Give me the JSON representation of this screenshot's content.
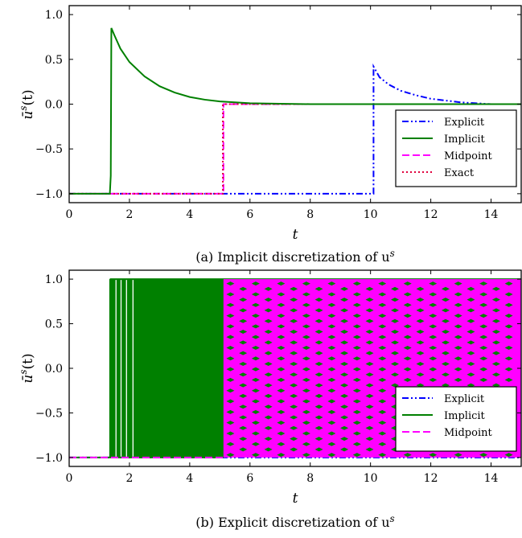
{
  "chart_data": [
    {
      "type": "line",
      "caption": "(a) Implicit discretization of u",
      "caption_sup": "s",
      "xlabel": "t",
      "ylabel": "ū",
      "ylabel_sup": "s",
      "ylabel_arg": "(t)",
      "xlim": [
        0,
        15
      ],
      "ylim": [
        -1.1,
        1.1
      ],
      "xticks": [
        "0",
        "2",
        "4",
        "6",
        "8",
        "10",
        "12",
        "14"
      ],
      "yticks": [
        "−1.0",
        "−0.5",
        "0.0",
        "0.5",
        "1.0"
      ],
      "grid": false,
      "legend_position": "lower-right",
      "series": [
        {
          "name": "Explicit",
          "color": "#0000ff",
          "style": "dashdotdot",
          "x": [
            0,
            10.1,
            10.1,
            10.1,
            10.3,
            10.6,
            11.0,
            11.5,
            12.0,
            12.5,
            13.0,
            13.5,
            14.0,
            15.0
          ],
          "y": [
            -1.0,
            -1.0,
            0.42,
            0.42,
            0.3,
            0.22,
            0.15,
            0.1,
            0.06,
            0.04,
            0.02,
            0.01,
            0.0,
            0.0
          ]
        },
        {
          "name": "Implicit",
          "color": "#008000",
          "style": "solid",
          "x": [
            0,
            1.35,
            1.38,
            1.4,
            1.5,
            1.7,
            2.0,
            2.5,
            3.0,
            3.5,
            4.0,
            4.5,
            5.0,
            5.5,
            6.0,
            7.0,
            8.0,
            10.0,
            15.0
          ],
          "y": [
            -1.0,
            -1.0,
            -0.8,
            0.85,
            0.77,
            0.62,
            0.47,
            0.31,
            0.2,
            0.13,
            0.08,
            0.05,
            0.03,
            0.02,
            0.01,
            0.005,
            0.0,
            0.0,
            0.0
          ]
        },
        {
          "name": "Midpoint",
          "color": "#ff00ff",
          "style": "dashed",
          "x": [
            0,
            5.12,
            5.12,
            15.0
          ],
          "y": [
            -1.0,
            -1.0,
            0.0,
            0.0
          ]
        },
        {
          "name": "Exact",
          "color": "#e0003c",
          "style": "dotted",
          "x": [
            0,
            5.1,
            5.1,
            15.0
          ],
          "y": [
            -1.0,
            -1.0,
            0.0,
            0.0
          ]
        }
      ]
    },
    {
      "type": "line",
      "caption": "(b) Explicit discretization of u",
      "caption_sup": "s",
      "xlabel": "t",
      "ylabel": "ū",
      "ylabel_sup": "s",
      "ylabel_arg": "(t)",
      "xlim": [
        0,
        15
      ],
      "ylim": [
        -1.1,
        1.1
      ],
      "xticks": [
        "0",
        "2",
        "4",
        "6",
        "8",
        "10",
        "12",
        "14"
      ],
      "yticks": [
        "−1.0",
        "−0.5",
        "0.0",
        "0.5",
        "1.0"
      ],
      "grid": false,
      "legend_position": "lower-right",
      "series": [
        {
          "name": "Explicit",
          "color": "#0000ff",
          "style": "dashdotdot",
          "x": [
            0,
            1.35,
            15.0
          ],
          "y": [
            -1.0,
            -1.0,
            -1.0
          ]
        },
        {
          "name": "Implicit",
          "color": "#008000",
          "style": "solid",
          "description_chattering": [
            1.35,
            15.0
          ],
          "x": [
            0,
            1.35,
            1.35,
            5.12,
            15.0
          ],
          "y": [
            -1.0,
            -1.0,
            1.0,
            1.0,
            1.0
          ]
        },
        {
          "name": "Midpoint",
          "color": "#ff00ff",
          "style": "dashed",
          "x": [
            0,
            5.12,
            5.12,
            15.0
          ],
          "y": [
            -1.0,
            -1.0,
            1.0,
            1.0
          ]
        }
      ]
    }
  ]
}
